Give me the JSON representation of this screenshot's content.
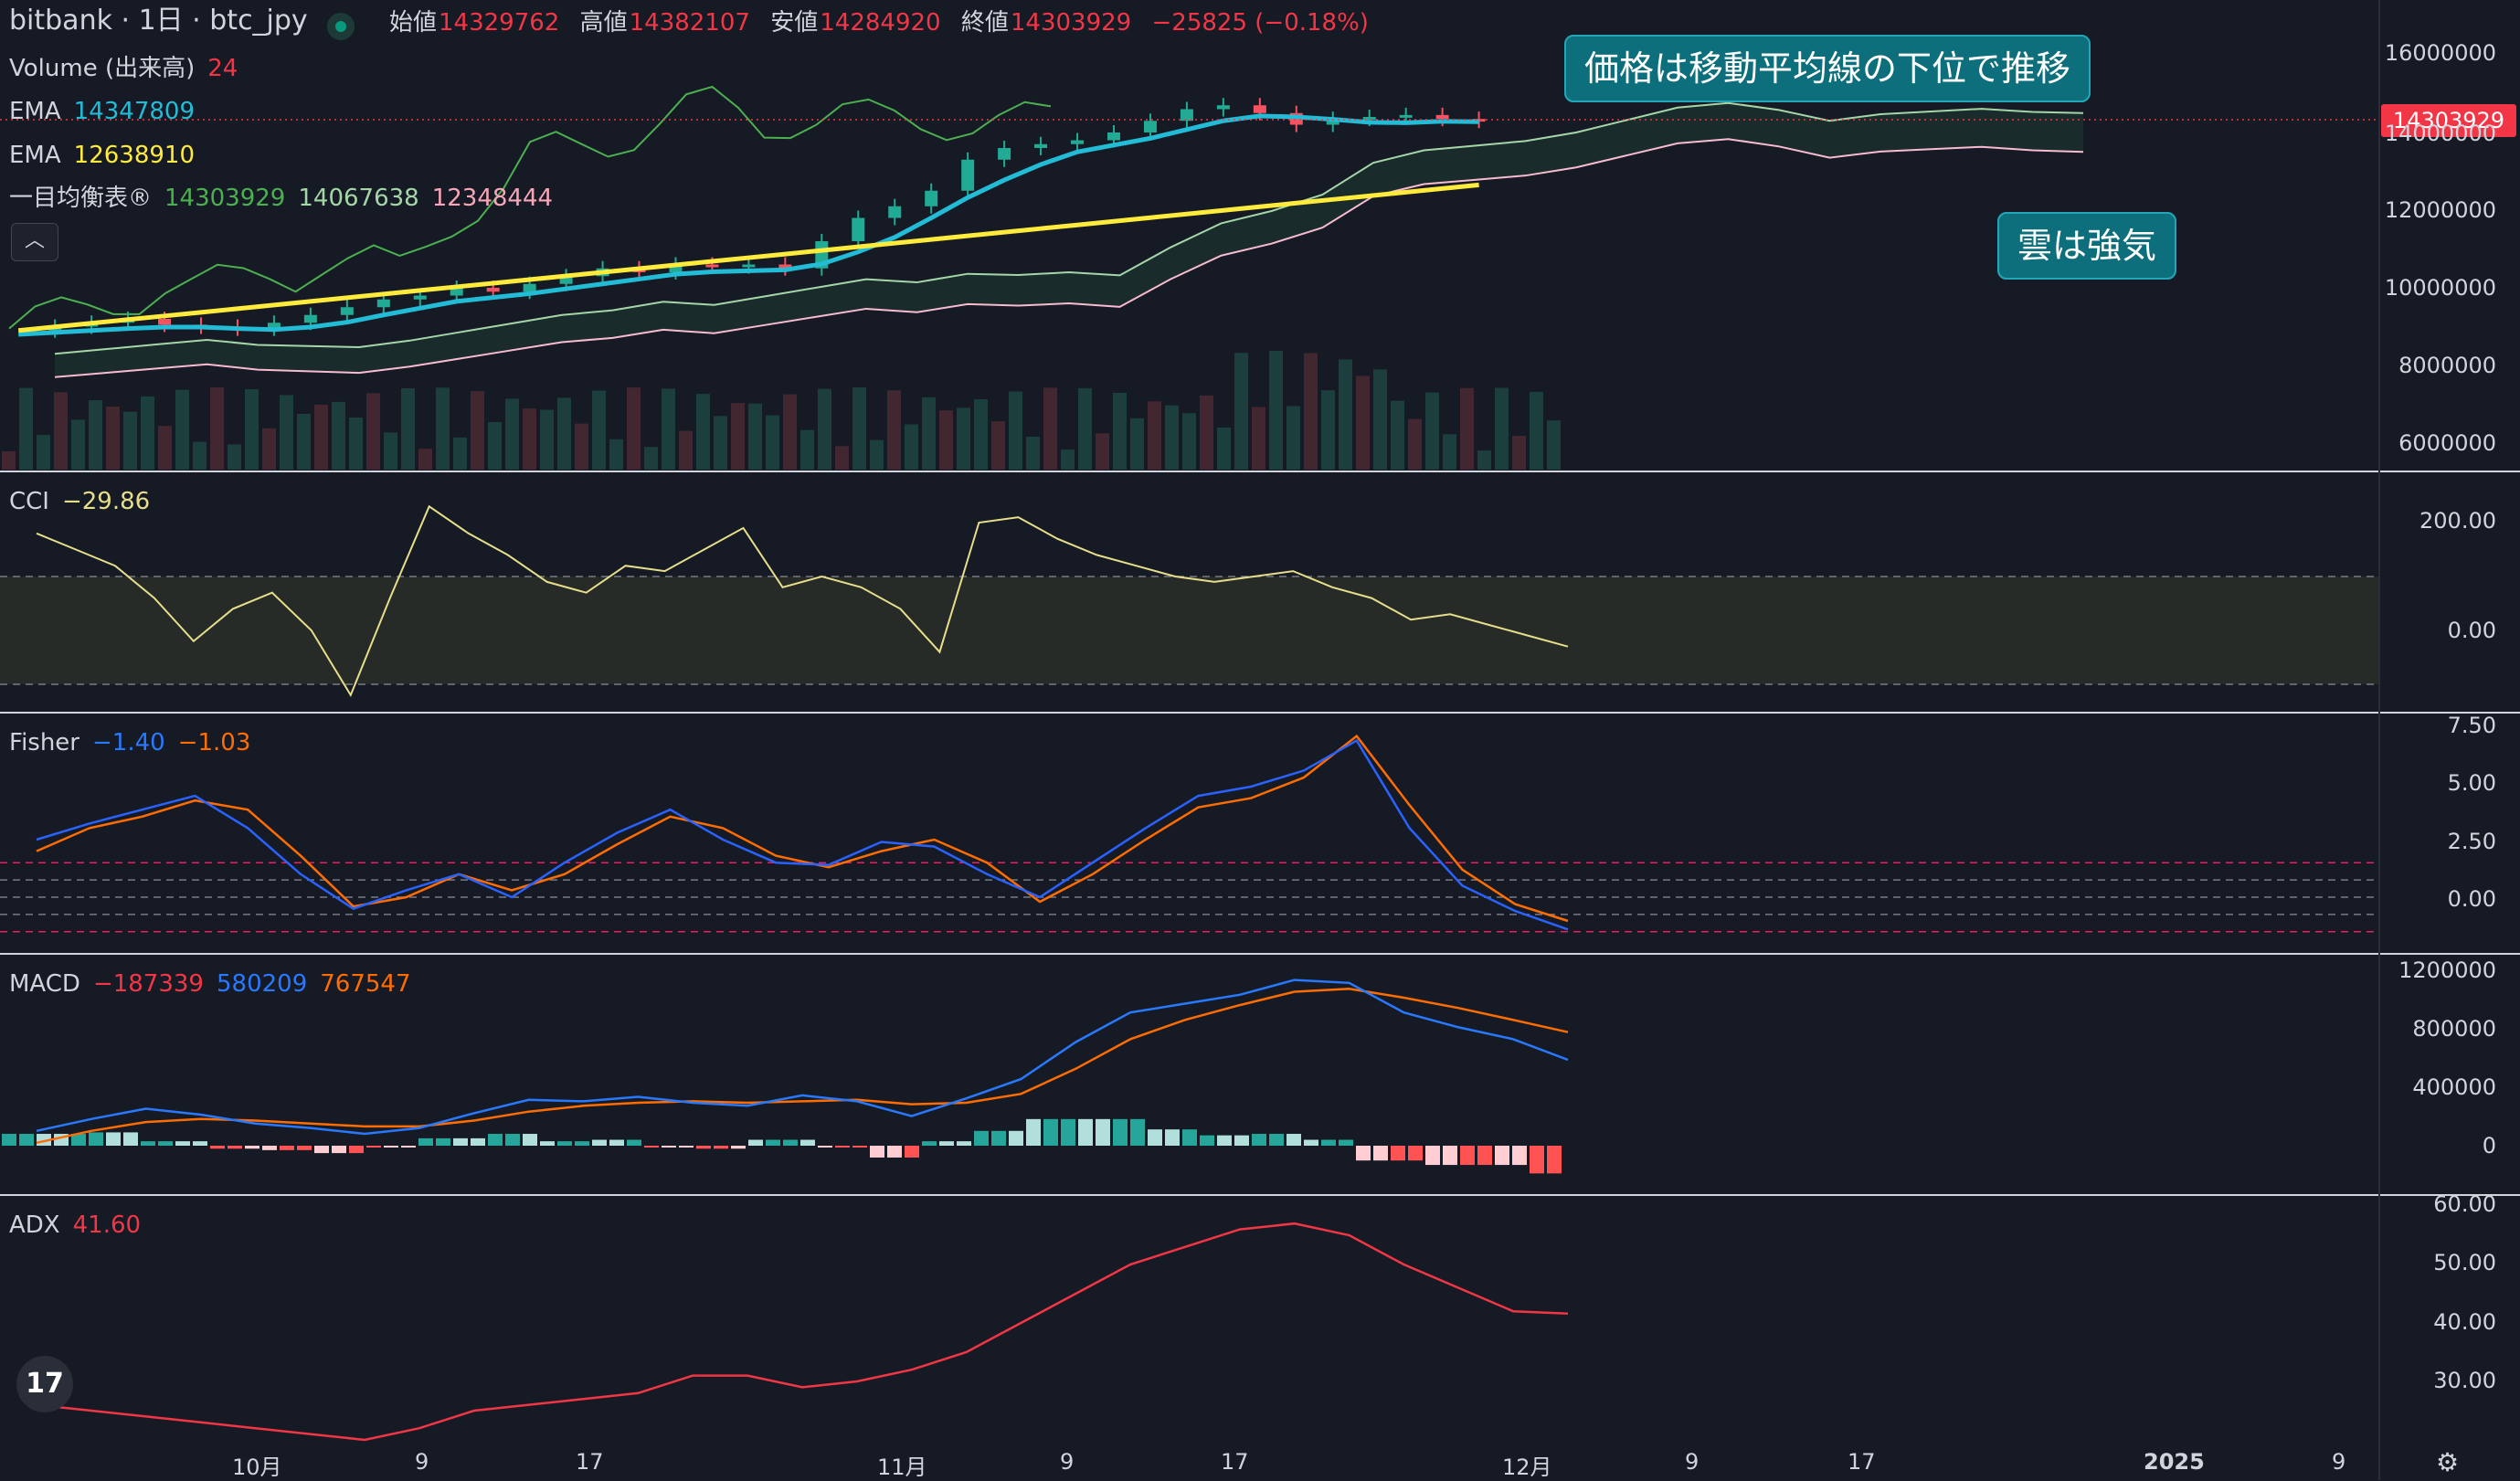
{
  "header": {
    "symbol_title": "bitbank · 1日 · btc_jpy",
    "ohlc": [
      {
        "label": "始値",
        "value": "14329762"
      },
      {
        "label": "高値",
        "value": "14382107"
      },
      {
        "label": "安値",
        "value": "14284920"
      },
      {
        "label": "終値",
        "value": "14303929"
      },
      {
        "label": "",
        "value": "−25825 (−0.18%)"
      }
    ]
  },
  "indicators": {
    "volume": {
      "name": "Volume (出来高)",
      "value": "24"
    },
    "ema1": {
      "name": "EMA",
      "value": "14347809"
    },
    "ema2": {
      "name": "EMA",
      "value": "12638910"
    },
    "ichimoku": {
      "name": "一目均衡表®",
      "v1": "14303929",
      "v2": "14067638",
      "v3": "12348444"
    },
    "cci": {
      "name": "CCI",
      "value": "−29.86"
    },
    "fisher": {
      "name": "Fisher",
      "v1": "−1.40",
      "v2": "−1.03"
    },
    "macd": {
      "name": "MACD",
      "v1": "−187339",
      "v2": "580209",
      "v3": "767547"
    },
    "adx": {
      "name": "ADX",
      "value": "41.60"
    }
  },
  "collapse_label": "︿",
  "callouts": {
    "top": "価格は移動平均線の下位で推移",
    "cloud": "雲は強気"
  },
  "price_tag": "14303929",
  "axes": {
    "price": [
      "16000000",
      "14000000",
      "12000000",
      "10000000",
      "8000000",
      "6000000"
    ],
    "cci": [
      "200.00",
      "0.00"
    ],
    "fisher": [
      "7.50",
      "5.00",
      "2.50",
      "0.00"
    ],
    "macd": [
      "1200000",
      "800000",
      "400000",
      "0"
    ],
    "adx": [
      "60.00",
      "50.00",
      "40.00",
      "30.00"
    ],
    "time": [
      "10月",
      "9",
      "17",
      "11月",
      "9",
      "17",
      "12月",
      "9",
      "17",
      "2025",
      "9"
    ]
  },
  "logo_text": "17",
  "icons": {
    "settings": "gear-icon",
    "logo": "tradingview-logo-icon",
    "status": "market-status-dot-icon"
  },
  "colors": {
    "up": "#22ab94",
    "down": "#f7525f",
    "ema_fast": "#22bcd6",
    "ema_slow": "#ffeb3b",
    "ichimoku_lead": "#4caf50",
    "ichimoku_a": "#a5d6a7",
    "ichimoku_b": "#f8bbd0",
    "cci": "#e6de8a",
    "fisher1": "#2962ff",
    "fisher2": "#ff6d00",
    "macd": "#2979ff",
    "signal": "#ff6d00",
    "adx": "#f23645"
  },
  "chart_data": {
    "type": "candlestick",
    "price_close_series": [
      8.9,
      9.0,
      9.1,
      9.2,
      9.05,
      9.0,
      8.95,
      9.1,
      9.3,
      9.5,
      9.7,
      9.8,
      10.0,
      9.9,
      10.1,
      10.3,
      10.5,
      10.4,
      10.6,
      10.55,
      10.6,
      10.5,
      11.2,
      11.8,
      12.1,
      12.5,
      13.3,
      13.6,
      13.7,
      13.8,
      14.0,
      14.3,
      14.6,
      14.7,
      14.5,
      14.2,
      14.35,
      14.4,
      14.45,
      14.35,
      14.3
    ],
    "cci_series": [
      180,
      150,
      120,
      60,
      -20,
      40,
      70,
      0,
      -120,
      60,
      230,
      180,
      140,
      90,
      70,
      120,
      110,
      150,
      190,
      80,
      100,
      80,
      40,
      -40,
      200,
      210,
      170,
      140,
      120,
      100,
      90,
      100,
      110,
      80,
      60,
      20,
      30,
      10,
      -10,
      -30
    ],
    "fisher_series1": [
      2.5,
      3.2,
      3.8,
      4.4,
      3.0,
      1.0,
      -0.5,
      0.3,
      1.0,
      0.0,
      1.5,
      2.8,
      3.8,
      2.5,
      1.5,
      1.4,
      2.4,
      2.2,
      1.0,
      0.0,
      1.5,
      3.0,
      4.4,
      4.8,
      5.5,
      6.8,
      3.0,
      0.5,
      -0.6,
      -1.4
    ],
    "fisher_series2": [
      2.0,
      3.0,
      3.5,
      4.2,
      3.8,
      1.8,
      -0.4,
      0.0,
      1.0,
      0.3,
      1.0,
      2.3,
      3.5,
      3.0,
      1.8,
      1.3,
      2.0,
      2.5,
      1.5,
      -0.2,
      1.0,
      2.5,
      3.9,
      4.3,
      5.2,
      7.0,
      4.0,
      1.2,
      -0.3,
      -1.03
    ],
    "macd_series": [
      100000,
      180000,
      250000,
      210000,
      150000,
      120000,
      80000,
      120000,
      220000,
      310000,
      300000,
      330000,
      290000,
      270000,
      340000,
      300000,
      200000,
      320000,
      450000,
      700000,
      900000,
      960000,
      1020000,
      1120000,
      1100000,
      900000,
      800000,
      720000,
      580209
    ],
    "signal_series": [
      20000,
      100000,
      160000,
      180000,
      170000,
      150000,
      130000,
      130000,
      170000,
      230000,
      270000,
      290000,
      300000,
      290000,
      300000,
      310000,
      280000,
      290000,
      350000,
      520000,
      720000,
      850000,
      950000,
      1040000,
      1060000,
      1000000,
      930000,
      850000,
      767547
    ],
    "adx_series": [
      26,
      25,
      24,
      23,
      22,
      21,
      20,
      22,
      25,
      26,
      27,
      28,
      31,
      31,
      29,
      30,
      32,
      35,
      40,
      45,
      50,
      53,
      56,
      57,
      55,
      50,
      46,
      42,
      41.6
    ]
  }
}
